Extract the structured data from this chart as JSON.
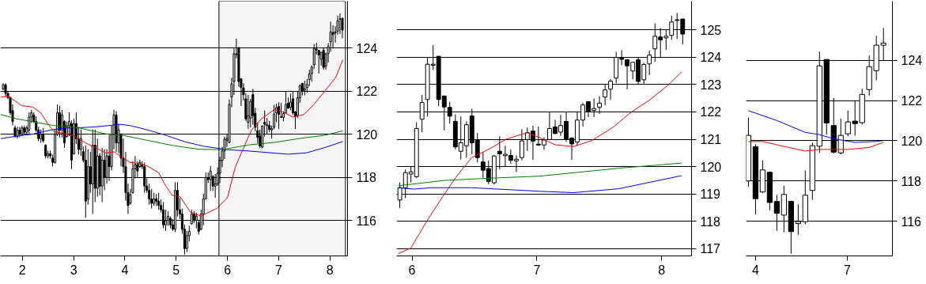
{
  "chart_data": [
    {
      "type": "candlestick",
      "color": "#000000",
      "grid": "y",
      "xlim": [
        1.572,
        8.343
      ],
      "ylim": [
        114.36,
        126.18
      ],
      "xticks": [
        2,
        3,
        4,
        5,
        6,
        7,
        8
      ],
      "yticks": [
        116,
        118,
        120,
        122,
        124
      ],
      "bands": [
        {
          "axis": "x",
          "from": 5.835,
          "to": 8.302,
          "color": "#000000"
        }
      ],
      "x": [
        1.627,
        1.673,
        1.719,
        1.765,
        1.811,
        1.857,
        1.903,
        1.949,
        1.995,
        2.04,
        2.086,
        2.132,
        2.178,
        2.224,
        2.27,
        2.316,
        2.362,
        2.408,
        2.454,
        2.5,
        2.546,
        2.592,
        2.638,
        2.684,
        2.73,
        2.776,
        2.821,
        2.867,
        2.913,
        2.959,
        3.005,
        3.051,
        3.097,
        3.143,
        3.189,
        3.235,
        3.281,
        3.327,
        3.373,
        3.419,
        3.465,
        3.511,
        3.556,
        3.602,
        3.648,
        3.694,
        3.74,
        3.786,
        3.832,
        3.878,
        3.924,
        3.97,
        4.016,
        4.062,
        4.108,
        4.154,
        4.2,
        4.246,
        4.292,
        4.337,
        4.383,
        4.429,
        4.475,
        4.521,
        4.567,
        4.613,
        4.659,
        4.705,
        4.751,
        4.797,
        4.843,
        4.889,
        4.935,
        4.981,
        5.027,
        5.073,
        5.118,
        5.164,
        5.21,
        5.256,
        5.302,
        5.348,
        5.394,
        5.44,
        5.486,
        5.532,
        5.578,
        5.624,
        5.67,
        5.716,
        5.762,
        5.808,
        5.853,
        5.899,
        5.945,
        5.991,
        6.037,
        6.083,
        6.129,
        6.175,
        6.221,
        6.267,
        6.313,
        6.359,
        6.405,
        6.451,
        6.497,
        6.543,
        6.589,
        6.634,
        6.68,
        6.726,
        6.772,
        6.818,
        6.864,
        6.91,
        6.956,
        7.002,
        7.048,
        7.094,
        7.14,
        7.186,
        7.232,
        7.278,
        7.324,
        7.37,
        7.415,
        7.461,
        7.507,
        7.553,
        7.599,
        7.645,
        7.691,
        7.737,
        7.783,
        7.829,
        7.875,
        7.921,
        7.967,
        8.013,
        8.059,
        8.105,
        8.151,
        8.196,
        8.242
      ],
      "ohlc": [
        [
          122.1,
          122.37,
          122.06,
          122.3
        ],
        [
          122.3,
          122.37,
          121.76,
          121.9
        ],
        [
          121.9,
          122.0,
          121.63,
          121.7
        ],
        [
          121.7,
          121.76,
          120.9,
          121.0
        ],
        [
          121.1,
          121.39,
          120.41,
          120.6
        ],
        [
          120.3,
          120.41,
          119.86,
          119.9
        ],
        [
          119.9,
          120.35,
          119.8,
          120.2
        ],
        [
          120.2,
          120.35,
          119.86,
          120.0
        ],
        [
          120.0,
          120.41,
          119.92,
          120.3
        ],
        [
          120.3,
          120.41,
          120.04,
          120.1
        ],
        [
          120.1,
          120.41,
          119.98,
          120.3
        ],
        [
          120.2,
          121.02,
          120.04,
          120.8
        ],
        [
          120.8,
          121.14,
          120.53,
          121.0
        ],
        [
          120.9,
          121.02,
          120.53,
          120.6
        ],
        [
          120.6,
          120.84,
          120.1,
          120.2
        ],
        [
          120.2,
          120.35,
          119.68,
          119.8
        ],
        [
          119.8,
          120.23,
          119.61,
          120.0
        ],
        [
          120.0,
          120.29,
          119.61,
          119.7
        ],
        [
          119.5,
          119.55,
          118.88,
          119.0
        ],
        [
          119.0,
          119.25,
          118.88,
          119.1
        ],
        [
          119.1,
          119.25,
          118.88,
          119.0
        ],
        [
          118.9,
          119.06,
          118.51,
          118.7
        ],
        [
          118.7,
          120.23,
          118.64,
          120.0
        ],
        [
          120.0,
          121.39,
          119.92,
          121.0
        ],
        [
          121.0,
          121.33,
          119.86,
          120.2
        ],
        [
          120.2,
          121.14,
          119.86,
          120.9
        ],
        [
          120.6,
          120.65,
          119.37,
          119.6
        ],
        [
          119.9,
          120.59,
          119.85,
          120.4
        ],
        [
          120.4,
          121.02,
          119.92,
          120.6
        ],
        [
          120.5,
          120.65,
          118.39,
          118.8
        ],
        [
          119.1,
          120.72,
          119.06,
          120.5
        ],
        [
          120.5,
          121.02,
          119.55,
          119.8
        ],
        [
          119.8,
          120.35,
          119.06,
          119.3
        ],
        [
          119.3,
          120.23,
          119.0,
          119.8
        ],
        [
          119.2,
          119.43,
          118.7,
          118.8
        ],
        [
          118.8,
          119.49,
          116.13,
          116.9
        ],
        [
          117.0,
          119.31,
          116.74,
          118.5
        ],
        [
          118.5,
          119.19,
          117.29,
          117.7
        ],
        [
          117.7,
          120.23,
          116.31,
          119.5
        ],
        [
          119.5,
          120.23,
          116.86,
          117.5
        ],
        [
          117.5,
          119.8,
          117.11,
          119.0
        ],
        [
          119.0,
          119.13,
          117.17,
          117.6
        ],
        [
          117.6,
          119.37,
          116.86,
          118.8
        ],
        [
          118.8,
          119.31,
          117.41,
          118.0
        ],
        [
          118.0,
          119.31,
          117.72,
          119.0
        ],
        [
          119.0,
          119.98,
          117.84,
          118.5
        ],
        [
          118.5,
          120.41,
          118.33,
          120.0
        ],
        [
          120.0,
          121.14,
          119.31,
          120.9
        ],
        [
          120.9,
          121.08,
          119.19,
          119.6
        ],
        [
          119.6,
          120.47,
          119.13,
          120.2
        ],
        [
          120.0,
          120.04,
          118.51,
          118.9
        ],
        [
          118.9,
          119.8,
          118.21,
          118.5
        ],
        [
          118.5,
          119.19,
          116.92,
          117.3
        ],
        [
          117.3,
          117.72,
          116.31,
          116.7
        ],
        [
          116.8,
          117.47,
          116.74,
          117.2
        ],
        [
          117.3,
          118.76,
          117.25,
          118.4
        ],
        [
          118.4,
          119.0,
          117.96,
          118.6
        ],
        [
          118.6,
          118.76,
          118.02,
          118.3
        ],
        [
          118.5,
          118.82,
          118.45,
          118.7
        ],
        [
          118.6,
          118.76,
          118.39,
          118.5
        ],
        [
          118.5,
          118.7,
          117.29,
          117.6
        ],
        [
          117.6,
          117.96,
          117.29,
          117.4
        ],
        [
          117.4,
          117.72,
          116.74,
          117.0
        ],
        [
          117.0,
          117.47,
          116.56,
          116.8
        ],
        [
          116.8,
          117.29,
          116.68,
          117.0
        ],
        [
          117.0,
          117.23,
          116.68,
          116.9
        ],
        [
          116.9,
          117.29,
          116.5,
          116.7
        ],
        [
          116.7,
          116.98,
          116.37,
          116.5
        ],
        [
          116.5,
          116.86,
          115.64,
          115.8
        ],
        [
          115.8,
          116.5,
          115.52,
          116.0
        ],
        [
          116.0,
          116.43,
          115.76,
          116.2
        ],
        [
          116.1,
          116.19,
          115.64,
          115.8
        ],
        [
          115.8,
          116.07,
          115.52,
          115.6
        ],
        [
          115.6,
          117.78,
          115.46,
          117.4
        ],
        [
          117.4,
          117.78,
          116.19,
          116.5
        ],
        [
          116.5,
          117.05,
          116.07,
          116.3
        ],
        [
          116.3,
          116.56,
          115.39,
          115.6
        ],
        [
          115.6,
          115.82,
          114.42,
          114.7
        ],
        [
          114.7,
          115.52,
          114.54,
          115.3
        ],
        [
          115.3,
          115.76,
          115.03,
          115.5
        ],
        [
          115.85,
          116.5,
          115.82,
          116.3
        ],
        [
          116.3,
          116.43,
          115.88,
          116.0
        ],
        [
          116.0,
          116.37,
          115.64,
          116.2
        ],
        [
          115.9,
          116.02,
          115.35,
          115.5
        ],
        [
          115.6,
          116.51,
          115.55,
          116.3
        ],
        [
          116.3,
          117.25,
          115.78,
          117.0
        ],
        [
          117.0,
          118.23,
          117.0,
          118.0
        ],
        [
          118.0,
          118.23,
          117.74,
          117.9
        ],
        [
          117.9,
          118.53,
          117.37,
          118.3
        ],
        [
          118.05,
          118.1,
          117.37,
          117.6
        ],
        [
          117.6,
          118.16,
          117.06,
          117.7
        ],
        [
          117.7,
          118.47,
          117.61,
          118.2
        ],
        [
          118.2,
          118.96,
          117.74,
          118.8
        ],
        [
          118.78,
          119.42,
          118.48,
          119.23
        ],
        [
          119.23,
          119.9,
          118.85,
          119.78
        ],
        [
          119.73,
          119.99,
          119.42,
          119.81
        ],
        [
          119.63,
          121.62,
          119.59,
          121.39
        ],
        [
          121.73,
          122.62,
          121.26,
          122.34
        ],
        [
          122.45,
          123.99,
          121.83,
          123.74
        ],
        [
          123.7,
          124.44,
          123.53,
          123.74
        ],
        [
          124.03,
          124.03,
          122.21,
          122.45
        ],
        [
          122.58,
          122.58,
          121.32,
          122.18
        ],
        [
          122.16,
          122.37,
          121.57,
          121.84
        ],
        [
          121.65,
          121.91,
          120.63,
          120.72
        ],
        [
          120.56,
          121.83,
          120.26,
          120.87
        ],
        [
          120.76,
          121.65,
          120.32,
          121.53
        ],
        [
          121.85,
          122.11,
          120.45,
          120.87
        ],
        [
          120.98,
          121.23,
          120.15,
          120.33
        ],
        [
          120.17,
          120.54,
          119.59,
          119.87
        ],
        [
          119.93,
          120.22,
          119.36,
          119.46
        ],
        [
          119.41,
          120.42,
          119.35,
          120.39
        ],
        [
          120.56,
          121.11,
          119.9,
          120.47
        ],
        [
          120.4,
          120.76,
          120.01,
          120.45
        ],
        [
          120.41,
          120.63,
          120.11,
          120.23
        ],
        [
          120.21,
          120.41,
          119.8,
          120.27
        ],
        [
          120.33,
          121.37,
          120.23,
          120.94
        ],
        [
          120.99,
          121.42,
          120.57,
          121.24
        ],
        [
          121.3,
          121.49,
          120.25,
          120.93
        ],
        [
          120.82,
          121.46,
          120.76,
          120.79
        ],
        [
          120.79,
          121.07,
          120.61,
          120.97
        ],
        [
          120.99,
          121.99,
          120.99,
          121.39
        ],
        [
          121.45,
          121.71,
          121.19,
          121.21
        ],
        [
          121.26,
          121.89,
          121.12,
          121.5
        ],
        [
          121.65,
          121.99,
          120.9,
          121.0
        ],
        [
          121.04,
          121.08,
          120.25,
          120.83
        ],
        [
          120.9,
          121.99,
          120.77,
          121.7
        ],
        [
          121.7,
          122.33,
          121.46,
          122.25
        ],
        [
          122.37,
          122.37,
          121.81,
          122.0
        ],
        [
          122.05,
          122.49,
          121.81,
          122.12
        ],
        [
          122.17,
          122.57,
          121.93,
          122.32
        ],
        [
          122.54,
          123.0,
          122.24,
          122.8
        ],
        [
          122.83,
          123.2,
          122.44,
          123.12
        ],
        [
          123.23,
          124.19,
          123.05,
          123.99
        ],
        [
          123.96,
          124.25,
          123.7,
          123.92
        ],
        [
          123.9,
          123.9,
          122.82,
          123.68
        ],
        [
          123.49,
          123.81,
          123.19,
          123.81
        ],
        [
          123.9,
          124.0,
          123.0,
          123.11
        ],
        [
          123.17,
          123.79,
          123.0,
          123.73
        ],
        [
          123.75,
          124.24,
          123.34,
          124.07
        ],
        [
          124.3,
          125.23,
          123.83,
          124.76
        ],
        [
          124.73,
          125.06,
          124.01,
          124.63
        ],
        [
          124.7,
          125.01,
          124.26,
          124.76
        ],
        [
          124.79,
          125.51,
          124.63,
          125.28
        ],
        [
          125.36,
          125.61,
          124.66,
          125.34
        ],
        [
          125.39,
          125.39,
          124.46,
          124.84
        ]
      ],
      "series": [
        {
          "type": "line",
          "color": "#ff0000",
          "x": [
            1.581,
            1.737,
            1.99,
            2.197,
            2.353,
            2.504,
            2.61,
            2.812,
            3.019,
            3.226,
            3.432,
            3.635,
            3.791,
            3.947,
            4.099,
            4.305,
            4.457,
            4.664,
            4.769,
            4.921,
            5.077,
            5.279,
            5.486,
            5.794,
            6.0,
            6.152,
            6.308,
            6.464,
            6.666,
            6.923,
            7.08,
            7.282,
            7.489,
            7.695,
            7.902,
            8.109,
            8.251
          ],
          "values": [
            121.73,
            121.76,
            121.33,
            121.27,
            121.02,
            120.47,
            120.14,
            120.04,
            119.92,
            119.61,
            119.37,
            119.13,
            119.19,
            118.94,
            118.7,
            118.64,
            118.51,
            118.21,
            117.72,
            117.17,
            117.11,
            116.39,
            116.21,
            116.57,
            117.06,
            118.47,
            119.33,
            120.18,
            120.73,
            121.16,
            121.04,
            120.8,
            120.92,
            121.41,
            122.02,
            122.63,
            123.46
          ]
        },
        {
          "type": "line",
          "color": "#0000ff",
          "x": [
            1.581,
            1.889,
            2.197,
            2.61,
            2.812,
            3.125,
            3.432,
            3.69,
            3.892,
            4.099,
            4.406,
            4.769,
            5.178,
            5.536,
            6.0,
            6.409,
            6.666,
            7.181,
            7.539,
            7.902,
            8.251
          ],
          "values": [
            119.8,
            119.92,
            120.01,
            120.23,
            120.29,
            120.31,
            120.35,
            120.41,
            120.47,
            120.41,
            120.23,
            119.98,
            119.65,
            119.45,
            119.29,
            119.23,
            119.18,
            119.08,
            119.14,
            119.39,
            119.67
          ]
        },
        {
          "type": "line",
          "color": "#008000",
          "x": [
            1.581,
            1.889,
            2.197,
            2.61,
            3.125,
            3.635,
            3.947,
            4.406,
            4.921,
            5.436,
            5.899,
            6.409,
            6.923,
            7.438,
            7.902,
            8.251
          ],
          "values": [
            120.92,
            120.72,
            120.59,
            120.41,
            120.29,
            120.02,
            119.96,
            119.74,
            119.49,
            119.31,
            119.29,
            119.51,
            119.63,
            119.82,
            119.96,
            120.16
          ]
        }
      ]
    },
    {
      "type": "candlestick",
      "color": "#000000",
      "grid": "y",
      "xlim": [
        5.876,
        8.24
      ],
      "ylim": [
        116.74,
        126.04
      ],
      "xticks": [
        6,
        7,
        8
      ],
      "yticks": [
        117,
        118,
        119,
        120,
        121,
        122,
        123,
        124,
        125
      ],
      "x": [
        5.902,
        5.947,
        5.991,
        6.036,
        6.08,
        6.124,
        6.169,
        6.213,
        6.258,
        6.302,
        6.347,
        6.391,
        6.436,
        6.48,
        6.524,
        6.569,
        6.613,
        6.658,
        6.702,
        6.747,
        6.791,
        6.836,
        6.88,
        6.924,
        6.969,
        7.013,
        7.058,
        7.102,
        7.147,
        7.191,
        7.236,
        7.28,
        7.324,
        7.369,
        7.413,
        7.458,
        7.502,
        7.547,
        7.591,
        7.636,
        7.68,
        7.724,
        7.769,
        7.813,
        7.858,
        7.902,
        7.947,
        7.991,
        8.036,
        8.08,
        8.124,
        8.169
      ],
      "ohlc": [
        [
          118.78,
          119.42,
          118.48,
          119.23
        ],
        [
          119.23,
          119.9,
          118.85,
          119.78
        ],
        [
          119.73,
          119.99,
          119.42,
          119.81
        ],
        [
          119.63,
          121.62,
          119.59,
          121.39
        ],
        [
          121.73,
          122.62,
          121.26,
          122.34
        ],
        [
          122.45,
          123.99,
          121.83,
          123.74
        ],
        [
          123.7,
          124.44,
          123.53,
          123.74
        ],
        [
          124.03,
          124.03,
          122.21,
          122.45
        ],
        [
          122.58,
          122.58,
          121.32,
          122.18
        ],
        [
          122.16,
          122.37,
          121.57,
          121.84
        ],
        [
          121.65,
          121.91,
          120.63,
          120.72
        ],
        [
          120.56,
          121.83,
          120.26,
          120.87
        ],
        [
          120.76,
          121.65,
          120.32,
          121.53
        ],
        [
          121.85,
          122.11,
          120.45,
          120.87
        ],
        [
          120.98,
          121.23,
          120.15,
          120.33
        ],
        [
          120.17,
          120.54,
          119.59,
          119.87
        ],
        [
          119.93,
          120.22,
          119.36,
          119.46
        ],
        [
          119.41,
          120.42,
          119.35,
          120.39
        ],
        [
          120.56,
          121.11,
          119.9,
          120.47
        ],
        [
          120.4,
          120.76,
          120.01,
          120.45
        ],
        [
          120.41,
          120.63,
          120.11,
          120.23
        ],
        [
          120.21,
          120.41,
          119.8,
          120.27
        ],
        [
          120.33,
          121.37,
          120.23,
          120.94
        ],
        [
          120.99,
          121.42,
          120.57,
          121.24
        ],
        [
          121.3,
          121.49,
          120.25,
          120.93
        ],
        [
          120.82,
          121.46,
          120.76,
          120.79
        ],
        [
          120.79,
          121.07,
          120.61,
          120.97
        ],
        [
          120.99,
          121.99,
          120.99,
          121.39
        ],
        [
          121.45,
          121.71,
          121.19,
          121.21
        ],
        [
          121.26,
          121.89,
          121.12,
          121.5
        ],
        [
          121.65,
          121.99,
          120.9,
          121.0
        ],
        [
          121.04,
          121.08,
          120.25,
          120.83
        ],
        [
          120.9,
          121.99,
          120.77,
          121.7
        ],
        [
          121.7,
          122.33,
          121.46,
          122.25
        ],
        [
          122.37,
          122.37,
          121.81,
          122.0
        ],
        [
          122.05,
          122.49,
          121.81,
          122.12
        ],
        [
          122.17,
          122.57,
          121.93,
          122.32
        ],
        [
          122.54,
          123.0,
          122.24,
          122.8
        ],
        [
          122.83,
          123.2,
          122.44,
          123.12
        ],
        [
          123.23,
          124.19,
          123.05,
          123.99
        ],
        [
          123.96,
          124.25,
          123.7,
          123.92
        ],
        [
          123.9,
          123.9,
          122.82,
          123.68
        ],
        [
          123.49,
          123.81,
          123.19,
          123.81
        ],
        [
          123.9,
          124.0,
          123.0,
          123.11
        ],
        [
          123.17,
          123.79,
          123.0,
          123.73
        ],
        [
          123.75,
          124.24,
          123.34,
          124.07
        ],
        [
          124.3,
          125.23,
          123.83,
          124.76
        ],
        [
          124.73,
          125.06,
          124.01,
          124.63
        ],
        [
          124.7,
          125.01,
          124.26,
          124.76
        ],
        [
          124.79,
          125.51,
          124.63,
          125.28
        ],
        [
          125.36,
          125.61,
          124.66,
          125.34
        ],
        [
          125.39,
          125.39,
          124.46,
          124.84
        ]
      ],
      "series": [
        {
          "type": "line",
          "color": "#ff0000",
          "x": [
            5.889,
            5.991,
            6.118,
            6.245,
            6.351,
            6.478,
            6.626,
            6.753,
            6.923,
            7.018,
            7.145,
            7.293,
            7.44,
            7.609,
            7.76,
            7.907,
            8.053,
            8.16
          ],
          "values": [
            116.82,
            117.03,
            118.01,
            118.9,
            119.61,
            120.33,
            120.66,
            121.0,
            121.24,
            121.07,
            120.8,
            120.73,
            120.95,
            121.43,
            122.0,
            122.44,
            122.98,
            123.46
          ]
        },
        {
          "type": "line",
          "color": "#008000",
          "x": [
            5.889,
            6.267,
            6.689,
            7.018,
            7.653,
            8.16
          ],
          "values": [
            119.3,
            119.5,
            119.59,
            119.65,
            119.94,
            120.13
          ]
        },
        {
          "type": "line",
          "color": "#0000ff",
          "x": [
            5.889,
            6.013,
            6.16,
            6.478,
            6.689,
            6.902,
            7.018,
            7.293,
            7.653,
            8.16
          ],
          "values": [
            119.23,
            119.18,
            119.23,
            119.23,
            119.18,
            119.13,
            119.1,
            119.05,
            119.19,
            119.67
          ]
        }
      ]
    },
    {
      "type": "candlestick",
      "color": "#000000",
      "grid": "y",
      "xlim": [
        3.691,
        8.48
      ],
      "ylim": [
        114.27,
        126.95
      ],
      "xticks": [
        4,
        7
      ],
      "yticks": [
        116,
        118,
        120,
        122,
        124
      ],
      "x": [
        3.767,
        4.0,
        4.233,
        4.465,
        4.698,
        4.93,
        5.163,
        5.396,
        5.628,
        5.861,
        6.093,
        6.326,
        6.559,
        6.791,
        7.024,
        7.256,
        7.489,
        7.721,
        7.954,
        8.187
      ],
      "ohlc": [
        [
          118.0,
          121.16,
          117.71,
          120.27
        ],
        [
          119.7,
          119.83,
          116.34,
          117.12
        ],
        [
          117.45,
          119.02,
          117.41,
          118.55
        ],
        [
          118.43,
          118.47,
          116.54,
          116.93
        ],
        [
          116.98,
          117.31,
          115.52,
          116.39
        ],
        [
          116.3,
          117.76,
          115.45,
          117.33
        ],
        [
          116.98,
          117.02,
          114.38,
          115.48
        ],
        [
          115.88,
          116.84,
          115.32,
          115.98
        ],
        [
          115.97,
          118.52,
          115.84,
          117.29
        ],
        [
          117.53,
          119.9,
          117.06,
          119.76
        ],
        [
          119.73,
          124.44,
          119.4,
          123.73
        ],
        [
          124.05,
          124.05,
          120.31,
          120.89
        ],
        [
          120.76,
          122.13,
          119.37,
          119.44
        ],
        [
          119.4,
          121.11,
          119.32,
          120.27
        ],
        [
          120.35,
          121.5,
          120.22,
          120.94
        ],
        [
          120.98,
          122.0,
          120.26,
          120.86
        ],
        [
          120.9,
          122.6,
          120.81,
          122.31
        ],
        [
          122.55,
          124.25,
          122.25,
          123.69
        ],
        [
          123.49,
          125.23,
          123.01,
          124.76
        ],
        [
          124.76,
          125.62,
          124.01,
          124.86
        ]
      ],
      "series": [
        {
          "type": "line",
          "color": "#0000ff",
          "x": [
            3.767,
            4.698,
            5.628,
            6.093,
            6.559,
            7.256,
            7.954,
            8.187
          ],
          "values": [
            121.5,
            121.01,
            120.42,
            120.31,
            120.1,
            119.92,
            119.97,
            120.01
          ]
        },
        {
          "type": "line",
          "color": "#ff0000",
          "x": [
            3.767,
            4.233,
            4.698,
            5.628,
            6.093,
            7.024,
            7.721,
            8.187
          ],
          "values": [
            119.96,
            119.97,
            119.8,
            119.49,
            119.57,
            119.57,
            119.67,
            119.92
          ]
        }
      ]
    }
  ]
}
